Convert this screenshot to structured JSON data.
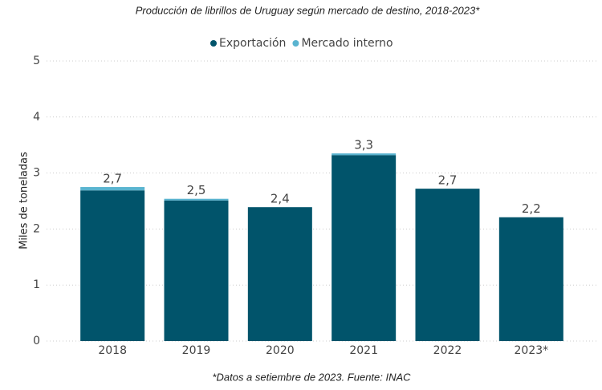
{
  "chart_data": {
    "type": "stacked_bar",
    "title": "Producción de librillos de Uruguay según mercado de destino, 2018-2023*",
    "y_label": "Miles de toneladas",
    "footnote": "*Datos a setiembre de 2023. Fuente: INAC",
    "categories": [
      "2018",
      "2019",
      "2020",
      "2021",
      "2022",
      "2023*"
    ],
    "series": [
      {
        "name": "Exportación",
        "color": "#01546b",
        "values": [
          2.69,
          2.51,
          2.39,
          3.32,
          2.72,
          2.21
        ]
      },
      {
        "name": "Mercado interno",
        "color": "#5ab4d0",
        "values": [
          0.06,
          0.03,
          0,
          0.03,
          0,
          0
        ]
      }
    ],
    "totals": [
      2.75,
      2.54,
      2.39,
      3.35,
      2.72,
      2.21
    ],
    "total_labels": [
      "2,7",
      "2,5",
      "2,4",
      "3,3",
      "2,7",
      "2,2"
    ],
    "ylim": [
      0,
      5
    ],
    "yticks": [
      0,
      1,
      2,
      3,
      4,
      5
    ],
    "grid": true,
    "legend": "top"
  }
}
